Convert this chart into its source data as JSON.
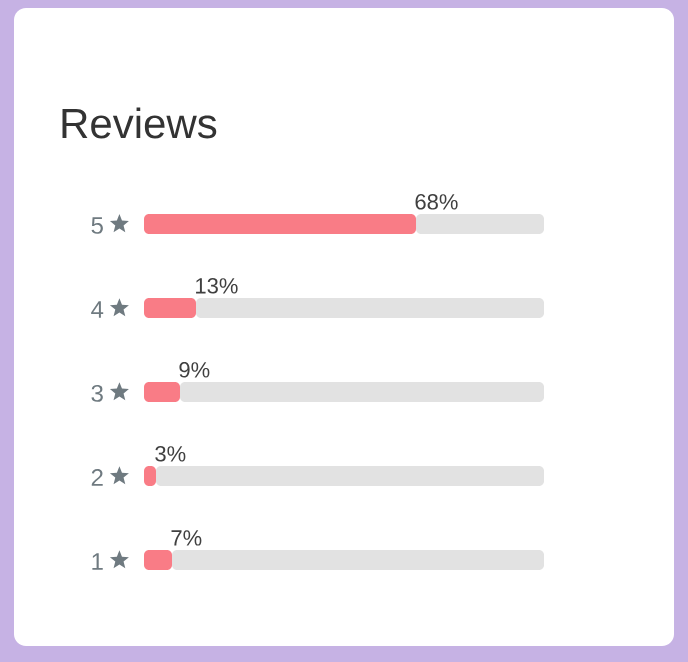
{
  "chart_data": {
    "type": "bar",
    "orientation": "horizontal",
    "stacked": true,
    "title": "Reviews",
    "categories": [
      "5",
      "4",
      "3",
      "2",
      "1"
    ],
    "tick_labels": "y",
    "series": [
      {
        "color": "#f97c86",
        "values": [
          68,
          13,
          9,
          3,
          7
        ],
        "value_labels": [
          "68%",
          "13%",
          "9%",
          "3%",
          "7%"
        ]
      },
      {
        "color": "#e2e2e2",
        "values": [
          32,
          87,
          91,
          97,
          93
        ]
      }
    ]
  }
}
